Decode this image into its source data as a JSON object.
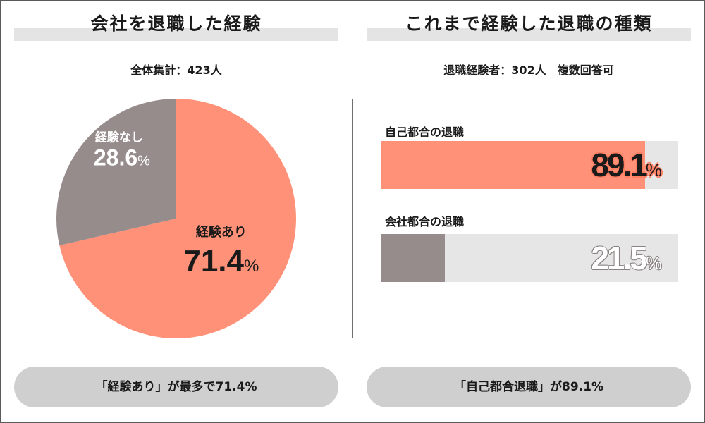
{
  "left_panel": {
    "title": "会社を退職した経験",
    "subtitle": "全体集計：423人",
    "summary": "「経験あり」が最多で71.4%"
  },
  "right_panel": {
    "title": "これまで経験した退職の種類",
    "subtitle": "退職経験者：302人　複数回答可",
    "summary": "「自己都合退職」が89.1%"
  },
  "colors": {
    "accent": "#ff9178",
    "secondary": "#978c8c",
    "track": "#e6e6e6",
    "pill": "#cfcfcf"
  },
  "chart_data": [
    {
      "type": "pie",
      "slices": [
        {
          "label": "経験あり",
          "value": 71.4,
          "display": "71.4",
          "unit": "%",
          "color": "#ff9178"
        },
        {
          "label": "経験なし",
          "value": 28.6,
          "display": "28.6",
          "unit": "%",
          "color": "#978c8c"
        }
      ]
    },
    {
      "type": "bar",
      "orientation": "horizontal",
      "categories": [
        "自己都合の退職",
        "会社都合の退職"
      ],
      "values": [
        89.1,
        21.5
      ],
      "displays": [
        "89.1",
        "21.5"
      ],
      "unit": "%",
      "colors": [
        "#ff9178",
        "#978c8c"
      ],
      "xlim": [
        0,
        100
      ]
    }
  ]
}
